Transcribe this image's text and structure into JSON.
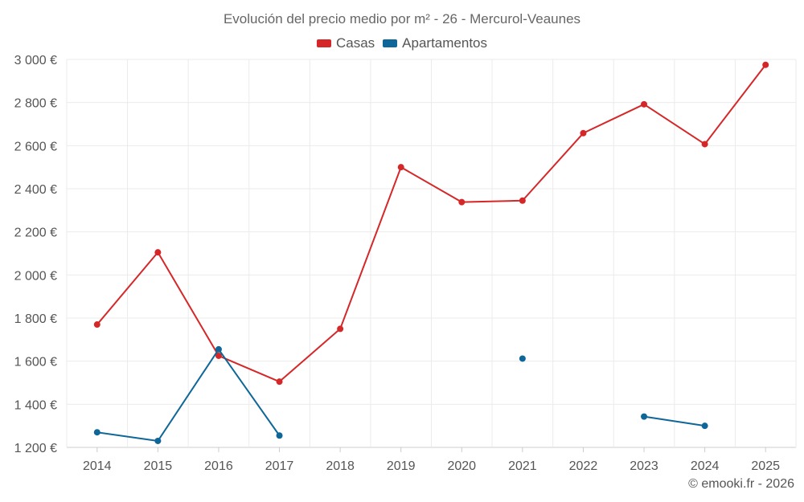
{
  "chart_data": {
    "type": "line",
    "title": "Evolución del precio medio por m² - 26 - Mercurol-Veaunes",
    "xlabel": "",
    "ylabel": "",
    "categories": [
      "2014",
      "2015",
      "2016",
      "2017",
      "2018",
      "2019",
      "2020",
      "2021",
      "2022",
      "2023",
      "2024",
      "2025"
    ],
    "ylim": [
      1200,
      3000
    ],
    "yticks": [
      1200,
      1400,
      1600,
      1800,
      2000,
      2200,
      2400,
      2600,
      2800,
      3000
    ],
    "ytick_labels": [
      "1 200 €",
      "1 400 €",
      "1 600 €",
      "1 800 €",
      "2 000 €",
      "2 200 €",
      "2 400 €",
      "2 600 €",
      "2 800 €",
      "3 000 €"
    ],
    "grid": true,
    "legend_position": "top-center",
    "series": [
      {
        "name": "Casas",
        "color": "#d62728",
        "values": [
          1770,
          2105,
          1625,
          1505,
          1750,
          2500,
          2338,
          2345,
          2658,
          2792,
          2607,
          2975
        ]
      },
      {
        "name": "Apartamentos",
        "color": "#0e6699",
        "values": [
          1270,
          1230,
          1655,
          1255,
          null,
          null,
          null,
          1612,
          null,
          1343,
          1300,
          null
        ]
      }
    ]
  },
  "credit": "© emooki.fr - 2026"
}
